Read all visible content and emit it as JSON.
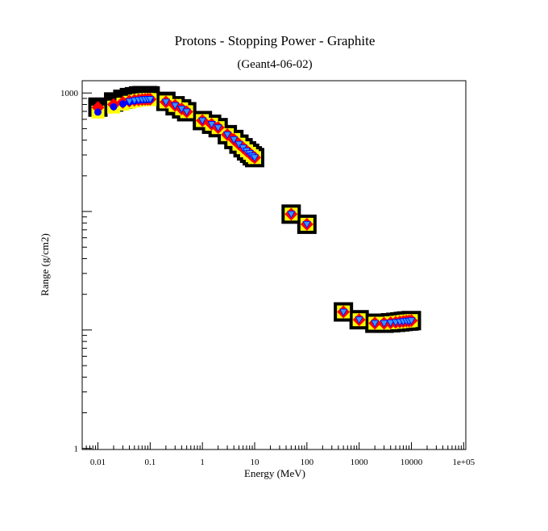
{
  "chart_data": {
    "type": "scatter",
    "title": "Protons - Stopping Power - Graphite",
    "subtitle": "(Geant4-06-02)",
    "xlabel": "Energy (MeV)",
    "ylabel": "Range (g/cm2)",
    "xscale": "log",
    "yscale": "log",
    "xlim": [
      0.005,
      110000
    ],
    "ylim": [
      0.98,
      1270
    ],
    "grid": false,
    "legend": "none",
    "x_ticks": [
      {
        "value": 0.01,
        "label": "0.01"
      },
      {
        "value": 0.1,
        "label": "0.1"
      },
      {
        "value": 1,
        "label": "1"
      },
      {
        "value": 10,
        "label": "10"
      },
      {
        "value": 100,
        "label": "100"
      },
      {
        "value": 1000,
        "label": "1000"
      },
      {
        "value": 10000,
        "label": "10000"
      },
      {
        "value": 100000,
        "label": "1e+05"
      }
    ],
    "y_ticks": [
      {
        "value": 1,
        "label": "1"
      },
      {
        "value": 1000,
        "label": "1000"
      }
    ],
    "colors": {
      "frame": "#000000",
      "black_marker": "#000000",
      "yellow_marker": "#ffff00",
      "red_marker": "#ff0000",
      "blue_marker": "#0000ff",
      "cyan_marker": "#3399ff"
    },
    "series": [
      {
        "marker": "black-square",
        "x": [
          0.01,
          0.02,
          0.03,
          0.04,
          0.05,
          0.06,
          0.07,
          0.08,
          0.09,
          0.1,
          0.2,
          0.3,
          0.4,
          0.5,
          1,
          1.5,
          2,
          3,
          4,
          5,
          6,
          7,
          8,
          9,
          10,
          50,
          100,
          500,
          1000,
          2000,
          3000,
          4000,
          5000,
          6000,
          7000,
          8000,
          9000,
          10000
        ],
        "y": [
          760,
          840,
          885,
          915,
          930,
          945,
          950,
          950,
          950,
          945,
          850,
          780,
          735,
          695,
          585,
          545,
          510,
          445,
          405,
          370,
          345,
          325,
          310,
          295,
          285,
          95,
          78,
          14.2,
          12.2,
          11.4,
          11.4,
          11.5,
          11.6,
          11.7,
          11.8,
          11.9,
          11.9,
          12
        ]
      },
      {
        "marker": "yellow-square",
        "x": [
          0.01,
          0.02,
          0.03,
          0.04,
          0.05,
          0.06,
          0.07,
          0.08,
          0.09,
          0.1,
          0.2,
          0.3,
          0.4,
          0.5,
          1,
          1.5,
          2,
          3,
          4,
          5,
          6,
          7,
          8,
          9,
          10,
          50,
          100,
          500,
          1000,
          2000,
          3000,
          4000,
          5000,
          6000,
          7000,
          8000,
          9000,
          10000
        ],
        "y": [
          690,
          760,
          805,
          835,
          855,
          868,
          876,
          880,
          882,
          880,
          840,
          785,
          735,
          695,
          585,
          545,
          510,
          445,
          405,
          370,
          345,
          325,
          310,
          295,
          285,
          95,
          78,
          14.2,
          12.2,
          11.4,
          11.4,
          11.5,
          11.6,
          11.7,
          11.8,
          11.9,
          11.9,
          12
        ]
      },
      {
        "marker": "red-diamond",
        "x": [
          0.01,
          0.02,
          0.03,
          0.04,
          0.05,
          0.06,
          0.07,
          0.08,
          0.09,
          0.1,
          0.2,
          0.3,
          0.4,
          0.5,
          1,
          1.5,
          2,
          3,
          4,
          5,
          6,
          7,
          8,
          9,
          10,
          50,
          100,
          500,
          1000,
          2000,
          3000,
          4000,
          5000,
          6000,
          7000,
          8000,
          9000,
          10000
        ],
        "y": [
          755,
          800,
          835,
          855,
          868,
          875,
          880,
          884,
          886,
          885,
          840,
          785,
          735,
          695,
          585,
          545,
          510,
          445,
          405,
          370,
          345,
          325,
          310,
          295,
          285,
          95,
          78,
          14.2,
          12.2,
          11.4,
          11.4,
          11.5,
          11.6,
          11.7,
          11.8,
          11.9,
          11.9,
          12
        ]
      },
      {
        "marker": "blue-circle",
        "x": [
          0.01,
          0.02,
          0.03,
          0.04,
          0.05,
          0.06,
          0.07,
          0.08,
          0.09,
          0.1
        ],
        "y": [
          690,
          765,
          810,
          840,
          858,
          870,
          877,
          881,
          883,
          882
        ]
      },
      {
        "marker": "cyan-triangle",
        "x": [
          0.04,
          0.05,
          0.06,
          0.07,
          0.08,
          0.09,
          0.1,
          0.2,
          0.3,
          0.4,
          0.5,
          1,
          1.5,
          2,
          3,
          4,
          5,
          6,
          7,
          8,
          9,
          10,
          50,
          100,
          500,
          1000,
          2000,
          3000,
          4000,
          5000,
          6000,
          7000,
          8000,
          9000,
          10000
        ],
        "y": [
          850,
          865,
          873,
          879,
          883,
          885,
          884,
          840,
          785,
          735,
          695,
          585,
          545,
          510,
          445,
          405,
          370,
          345,
          325,
          310,
          295,
          285,
          95,
          78,
          14.2,
          12.2,
          11.4,
          11.4,
          11.5,
          11.6,
          11.7,
          11.8,
          11.9,
          11.9,
          12
        ]
      }
    ]
  }
}
